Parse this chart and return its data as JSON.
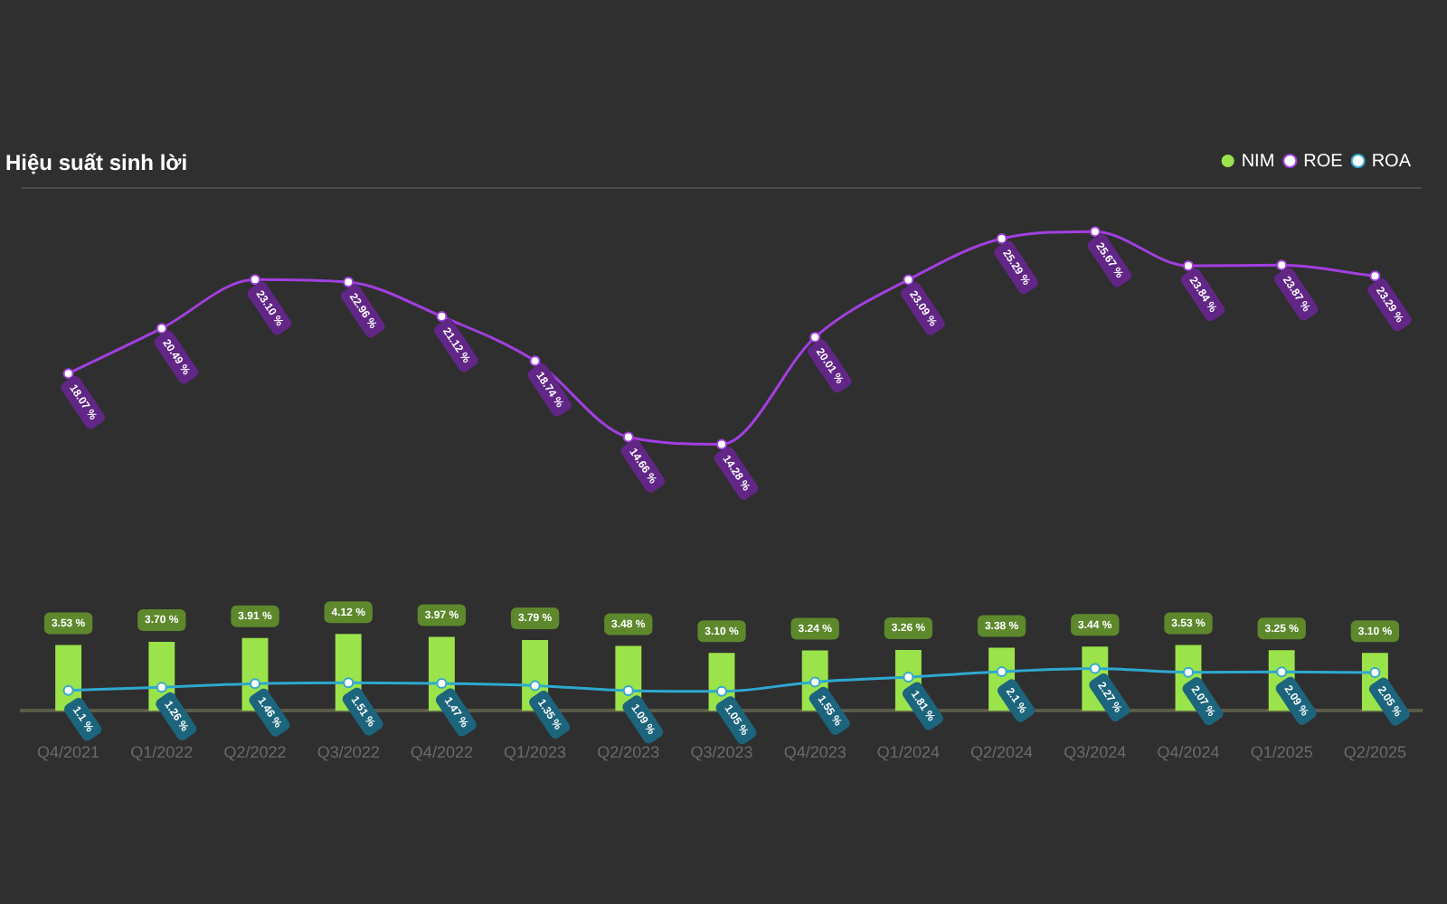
{
  "chart_data": {
    "type": "bar",
    "title": "Hiệu suất sinh lời",
    "categories": [
      "Q4/2021",
      "Q1/2022",
      "Q2/2022",
      "Q3/2022",
      "Q4/2022",
      "Q1/2023",
      "Q2/2023",
      "Q3/2023",
      "Q4/2023",
      "Q1/2024",
      "Q2/2024",
      "Q3/2024",
      "Q4/2024",
      "Q1/2025",
      "Q2/2025"
    ],
    "series": [
      {
        "name": "NIM",
        "color": "#9be34a",
        "values": [
          3.53,
          3.7,
          3.91,
          4.12,
          3.97,
          3.79,
          3.48,
          3.1,
          3.24,
          3.26,
          3.38,
          3.44,
          3.53,
          3.25,
          3.1
        ],
        "value_labels": [
          "3.53 %",
          "3.70 %",
          "3.91 %",
          "4.12 %",
          "3.97 %",
          "3.79 %",
          "3.48 %",
          "3.10 %",
          "3.24 %",
          "3.26 %",
          "3.38 %",
          "3.44 %",
          "3.53 %",
          "3.25 %",
          "3.10 %"
        ]
      },
      {
        "name": "ROE",
        "type": "line",
        "color": "#a23fe0",
        "values": [
          18.07,
          20.49,
          23.1,
          22.96,
          21.12,
          18.74,
          14.66,
          14.28,
          20.01,
          23.09,
          25.29,
          25.67,
          23.84,
          23.87,
          23.29
        ],
        "value_labels": [
          "18.07 %",
          "20.49 %",
          "23.10 %",
          "22.96 %",
          "21.12 %",
          "18.74 %",
          "14.66 %",
          "14.28 %",
          "20.01 %",
          "23.09 %",
          "25.29 %",
          "25.67 %",
          "23.84 %",
          "23.87 %",
          "23.29 %"
        ]
      },
      {
        "name": "ROA",
        "type": "line",
        "color": "#2fa8d0",
        "values": [
          1.1,
          1.26,
          1.46,
          1.51,
          1.47,
          1.35,
          1.09,
          1.05,
          1.55,
          1.81,
          2.1,
          2.27,
          2.07,
          2.09,
          2.05
        ],
        "value_labels": [
          "1.1 %",
          "1.26 %",
          "1.46 %",
          "1.51 %",
          "1.47 %",
          "1.35 %",
          "1.09 %",
          "1.05 %",
          "1.55 %",
          "1.81 %",
          "2.1 %",
          "2.27 %",
          "2.07 %",
          "2.09 %",
          "2.05 %"
        ]
      }
    ],
    "ylim": [
      0,
      28
    ],
    "tick_labels": "x",
    "legend": "top right",
    "marker": "circle"
  }
}
